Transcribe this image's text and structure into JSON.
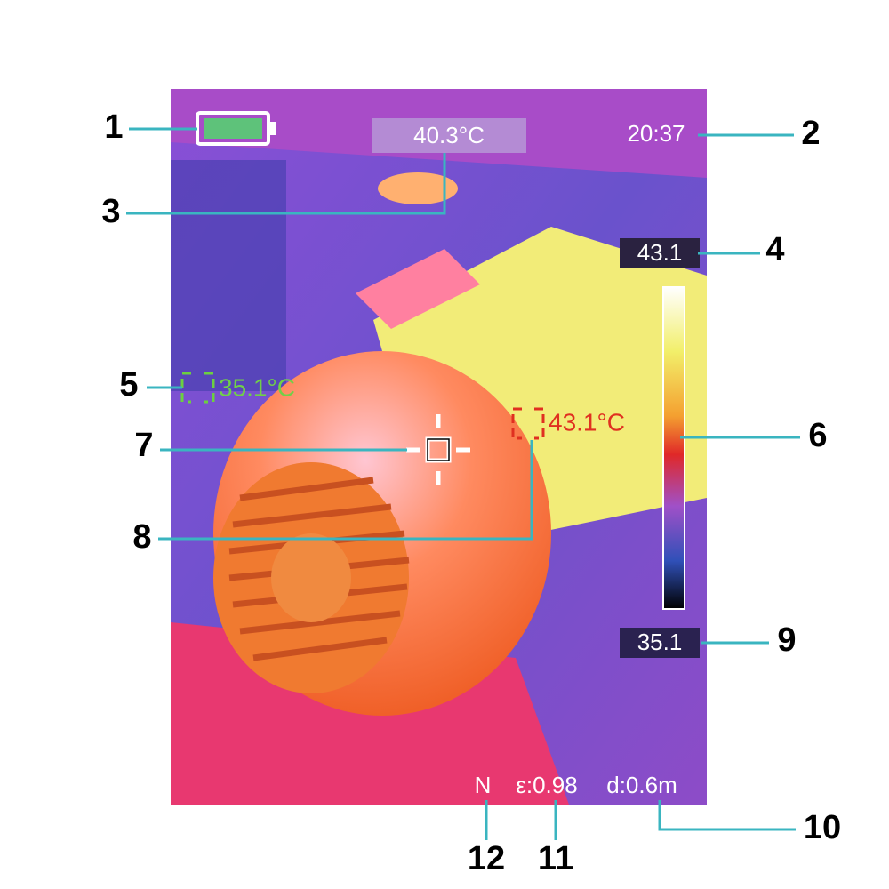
{
  "screen": {
    "center_temp": "40.3°C",
    "time": "20:37",
    "scale_max": "43.1",
    "scale_min": "35.1",
    "cold_spot": "35.1°C",
    "hot_spot": "43.1°C",
    "mode": "N",
    "emissivity": "ε:0.98",
    "distance": "d:0.6m"
  },
  "callouts": [
    "1",
    "2",
    "3",
    "4",
    "5",
    "6",
    "7",
    "8",
    "9",
    "10",
    "11",
    "12"
  ]
}
